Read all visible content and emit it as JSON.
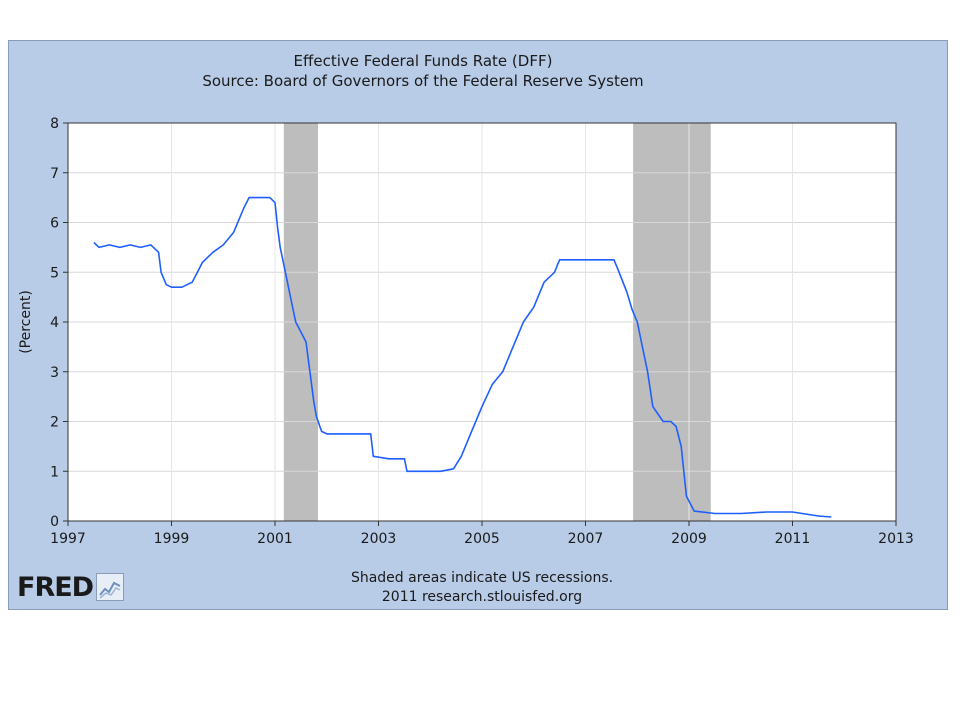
{
  "chart_data": {
    "type": "line",
    "title": "Effective Federal Funds Rate (DFF)",
    "subtitle": "Source: Board of Governors of the Federal Reserve System",
    "ylabel": "(Percent)",
    "xlabel": "",
    "xlim": [
      1997.0,
      2013.0
    ],
    "ylim": [
      0,
      8
    ],
    "x_ticks": [
      "1997",
      "1999",
      "2001",
      "2003",
      "2005",
      "2007",
      "2009",
      "2011",
      "2013"
    ],
    "y_ticks": [
      "0",
      "1",
      "2",
      "3",
      "4",
      "5",
      "6",
      "7",
      "8"
    ],
    "grid": true,
    "recessions": [
      {
        "start": 2001.17,
        "end": 2001.83
      },
      {
        "start": 2007.92,
        "end": 2009.42
      }
    ],
    "series": [
      {
        "line_color": "#1f5fff",
        "x": [
          1997.5,
          1997.6,
          1997.8,
          1998.0,
          1998.2,
          1998.4,
          1998.6,
          1998.75,
          1998.8,
          1998.9,
          1999.0,
          1999.2,
          1999.4,
          1999.5,
          1999.6,
          1999.8,
          2000.0,
          2000.2,
          2000.4,
          2000.5,
          2000.7,
          2000.9,
          2001.0,
          2001.05,
          2001.1,
          2001.2,
          2001.3,
          2001.4,
          2001.5,
          2001.6,
          2001.7,
          2001.75,
          2001.8,
          2001.9,
          2002.0,
          2002.3,
          2002.6,
          2002.85,
          2002.9,
          2003.2,
          2003.5,
          2003.55,
          2003.8,
          2004.2,
          2004.45,
          2004.6,
          2004.8,
          2005.0,
          2005.2,
          2005.4,
          2005.6,
          2005.8,
          2006.0,
          2006.2,
          2006.4,
          2006.5,
          2006.8,
          2007.0,
          2007.3,
          2007.55,
          2007.65,
          2007.8,
          2007.9,
          2008.0,
          2008.1,
          2008.2,
          2008.3,
          2008.5,
          2008.65,
          2008.75,
          2008.85,
          2008.95,
          2009.1,
          2009.5,
          2010.0,
          2010.5,
          2011.0,
          2011.5,
          2011.75
        ],
        "values": [
          5.6,
          5.5,
          5.55,
          5.5,
          5.55,
          5.5,
          5.55,
          5.4,
          5.0,
          4.75,
          4.7,
          4.7,
          4.8,
          5.0,
          5.2,
          5.4,
          5.55,
          5.8,
          6.3,
          6.5,
          6.5,
          6.5,
          6.4,
          5.9,
          5.5,
          5.0,
          4.5,
          4.0,
          3.8,
          3.6,
          2.8,
          2.4,
          2.1,
          1.8,
          1.75,
          1.75,
          1.75,
          1.75,
          1.3,
          1.25,
          1.25,
          1.0,
          1.0,
          1.0,
          1.05,
          1.3,
          1.8,
          2.3,
          2.75,
          3.0,
          3.5,
          4.0,
          4.3,
          4.8,
          5.0,
          5.25,
          5.25,
          5.25,
          5.25,
          5.25,
          5.0,
          4.6,
          4.25,
          4.0,
          3.5,
          3.0,
          2.3,
          2.0,
          2.0,
          1.9,
          1.5,
          0.5,
          0.2,
          0.15,
          0.15,
          0.18,
          0.18,
          0.1,
          0.08
        ]
      }
    ]
  },
  "footer": {
    "note": "Shaded areas indicate US recessions.",
    "credit": "2011 research.stlouisfed.org"
  },
  "logo": {
    "wordmark": "FRED",
    "icon": "fred-chart-logo-icon"
  }
}
